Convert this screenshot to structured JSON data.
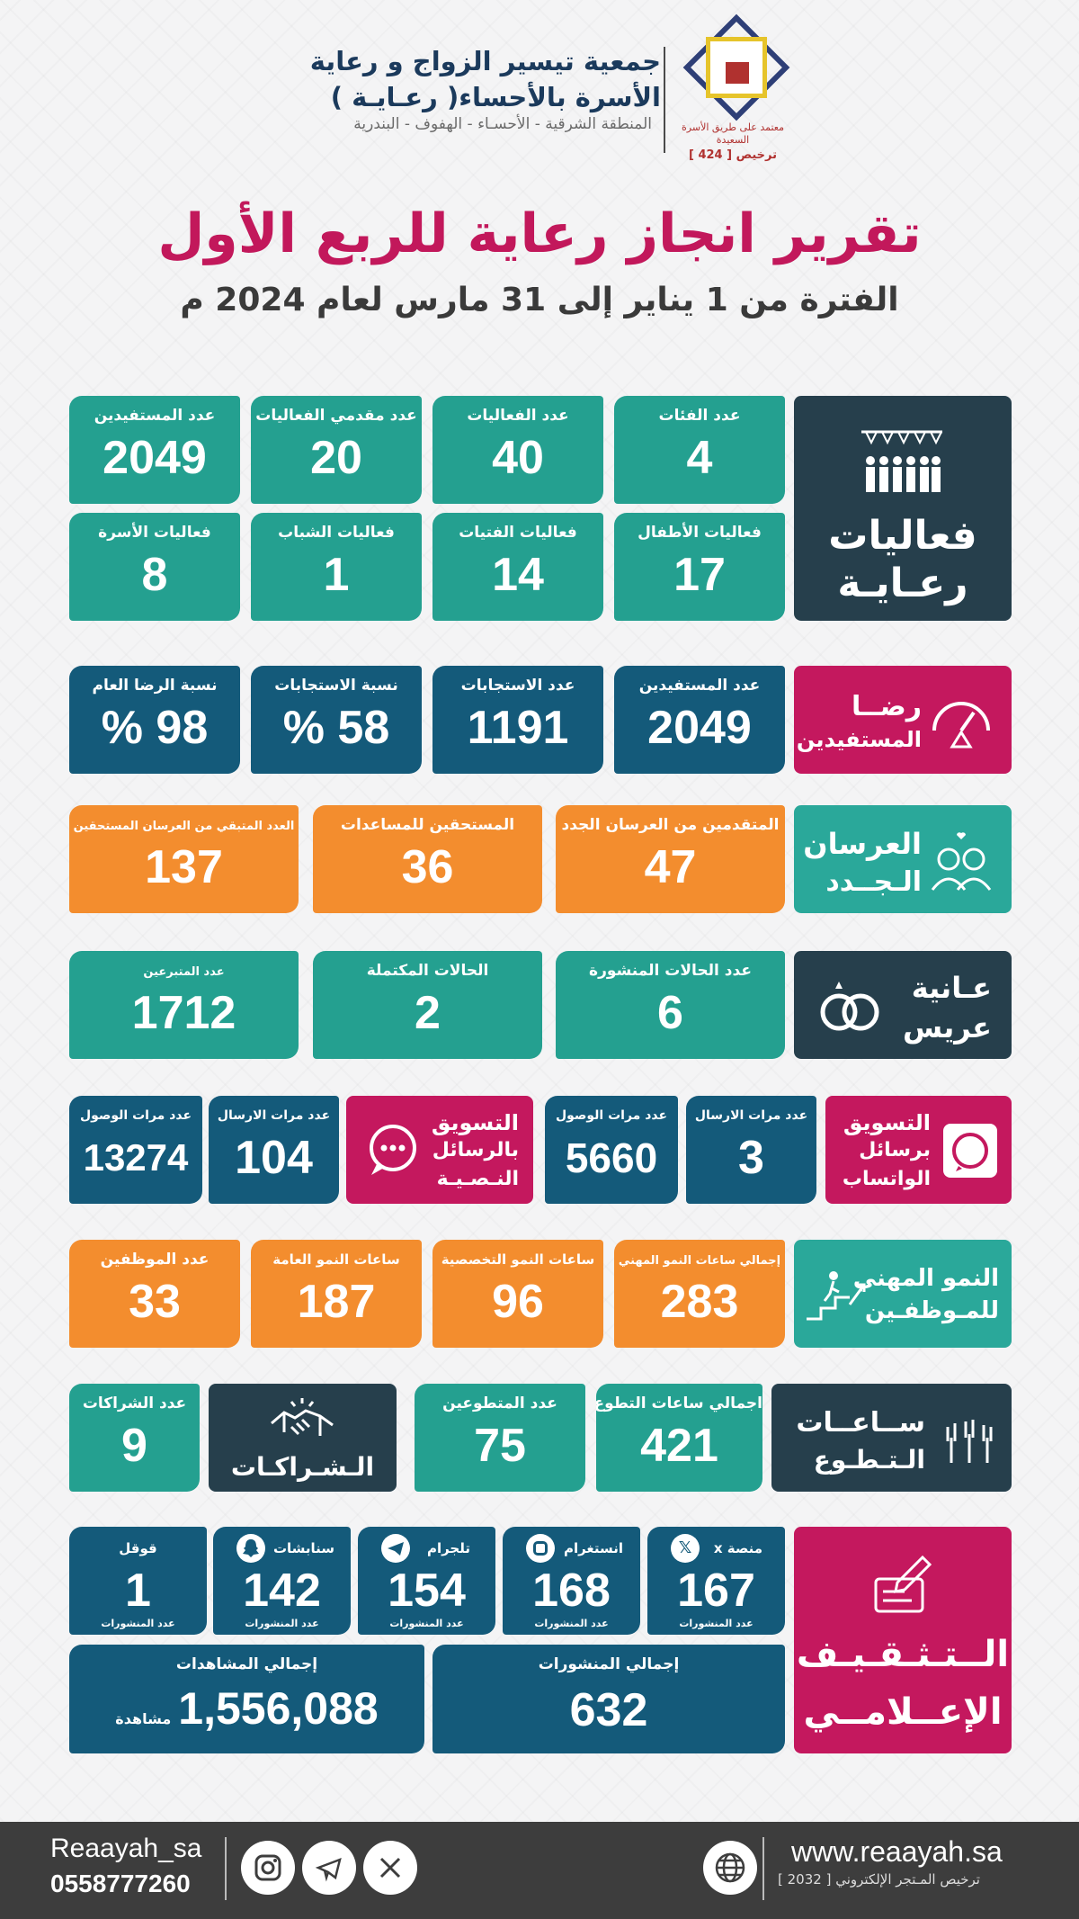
{
  "header": {
    "org_line1": "جمعية تيسير الزواج و رعاية",
    "org_line2": "الأسرة بالأحساء( رعـايـة )",
    "region": "المنطقة الشرقية  - الأحسـاء - الهفوف - البندرية",
    "logo_text": "معتمد على طريق الأسرة السعيدة",
    "license": "ترخيص [ 424 ]"
  },
  "title": "تقرير انجاز رعاية للربع الأول",
  "subtitle": "الفترة من 1 يناير إلى 31 مارس لعام 2024 م",
  "events": {
    "heading": "فعاليات رعـايـة",
    "items": [
      {
        "label": "عدد الفئات",
        "value": "4"
      },
      {
        "label": "عدد الفعاليات",
        "value": "40"
      },
      {
        "label": "عدد مقدمي الفعاليات",
        "value": "20"
      },
      {
        "label": "عدد المستفيدين",
        "value": "2049"
      },
      {
        "label": "فعاليات الأطفال",
        "value": "17"
      },
      {
        "label": "فعاليات الفتيات",
        "value": "14"
      },
      {
        "label": "فعاليات الشباب",
        "value": "1"
      },
      {
        "label": "فعاليات الأسرة",
        "value": "8"
      }
    ]
  },
  "satisfaction": {
    "heading1": "رضــا",
    "heading2": "المستفيدين",
    "items": [
      {
        "label": "عدد المستفيدين",
        "value": "2049"
      },
      {
        "label": "عدد الاستجابات",
        "value": "1191"
      },
      {
        "label": "نسبة الاستجابات",
        "value": "58 %"
      },
      {
        "label": "نسبة الرضا العام",
        "value": "98 %"
      }
    ]
  },
  "grooms": {
    "heading1": "العرسان",
    "heading2": "الـجــدد",
    "items": [
      {
        "label": "المتقدمين من العرسان الجدد",
        "value": "47"
      },
      {
        "label": "المستحقين للمساعدات",
        "value": "36"
      },
      {
        "label": "العدد المتبقي من العرسان المستحقين",
        "value": "137"
      }
    ]
  },
  "groom_aid": {
    "heading1": "عـانية",
    "heading2": "عريس",
    "items": [
      {
        "label": "عدد الحالات المنشورة",
        "value": "6"
      },
      {
        "label": "الحالات المكتملة",
        "value": "2"
      },
      {
        "label": "عدد المتبرعين",
        "value": "1712"
      }
    ]
  },
  "whatsapp": {
    "heading1": "التسويق",
    "heading2": "برسائل",
    "heading3": "الواتساب",
    "items": [
      {
        "label": "عدد مرات الارسال",
        "value": "3"
      },
      {
        "label": "عدد مرات الوصول",
        "value": "5660"
      }
    ]
  },
  "sms": {
    "heading1": "التسويق",
    "heading2": "بالرسائل",
    "heading3": "النـصـيـة",
    "items": [
      {
        "label": "عدد مرات الارسال",
        "value": "104"
      },
      {
        "label": "عدد مرات الوصول",
        "value": "13274"
      }
    ]
  },
  "growth": {
    "heading1": "النمو المهني",
    "heading2": "للمـوظفـين",
    "items": [
      {
        "label": "إجمالي ساعات النمو المهني",
        "value": "283"
      },
      {
        "label": "ساعات النمو التخصصية",
        "value": "96"
      },
      {
        "label": "ساعات النمو العامة",
        "value": "187"
      },
      {
        "label": "عدد الموظفين",
        "value": "33"
      }
    ]
  },
  "volunteer": {
    "heading1": "ســاعــات",
    "heading2": "الـتـطـوع",
    "items": [
      {
        "label": "اجمالي ساعات التطوع",
        "value": "421"
      },
      {
        "label": "عدد المتطوعين",
        "value": "75"
      }
    ]
  },
  "partnerships": {
    "heading": "الـشـراكـات",
    "label": "عدد الشراكات",
    "value": "9"
  },
  "media": {
    "heading1": "الــتـثـقـيـف",
    "heading2": "الإعــلامــي",
    "posts_unit": "عدد المنشورات",
    "platforms": [
      {
        "label": "منصة x",
        "value": "167"
      },
      {
        "label": "انستغرام",
        "value": "168"
      },
      {
        "label": "تلجرام",
        "value": "154"
      },
      {
        "label": "سنابشات",
        "value": "142"
      },
      {
        "label": "قوقل",
        "value": "1"
      }
    ],
    "total_posts_label": "إجمالي المنشورات",
    "total_posts": "632",
    "total_views_label": "إجمالي المشاهدات",
    "total_views": "1,556,088",
    "views_unit": "مشاهدة"
  },
  "footer": {
    "url": "www.reaayah.sa",
    "license": "ترخيص المـتجر الإلكتروني [ 2032 ]",
    "handle": "Reaayah_sa",
    "phone": "0558777260"
  },
  "colors": {
    "teal": "#24a090",
    "navy": "#145a7a",
    "orange": "#f38d2e",
    "dark": "#263f4c",
    "magenta": "#c4185e",
    "title": "#c2185b"
  }
}
